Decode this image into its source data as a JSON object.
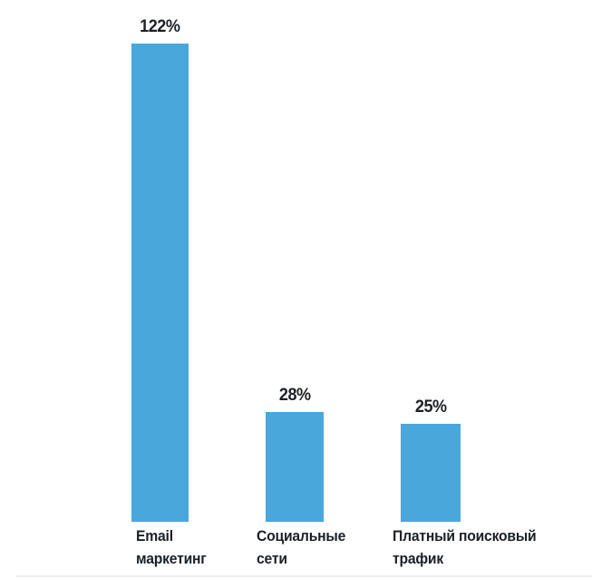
{
  "chart_data": {
    "type": "bar",
    "categories": [
      "Email маркетинг",
      "Социальные сети",
      "Платный поисковый трафик"
    ],
    "values": [
      122,
      28,
      25
    ],
    "value_labels": [
      "122%",
      "28%",
      "25%"
    ],
    "category_display": [
      "Email\nмаркетинг",
      "Социальные\nсети",
      "Платный поисковый\nтрафик"
    ],
    "unit": "%",
    "title": "",
    "xlabel": "",
    "ylabel": "",
    "ylim": [
      0,
      130
    ],
    "grid": false,
    "axes_visible": false,
    "legend_position": "none",
    "bar_color": "#4aa7db",
    "label_color": "#1c2025",
    "baseline_color": "#ededed"
  }
}
